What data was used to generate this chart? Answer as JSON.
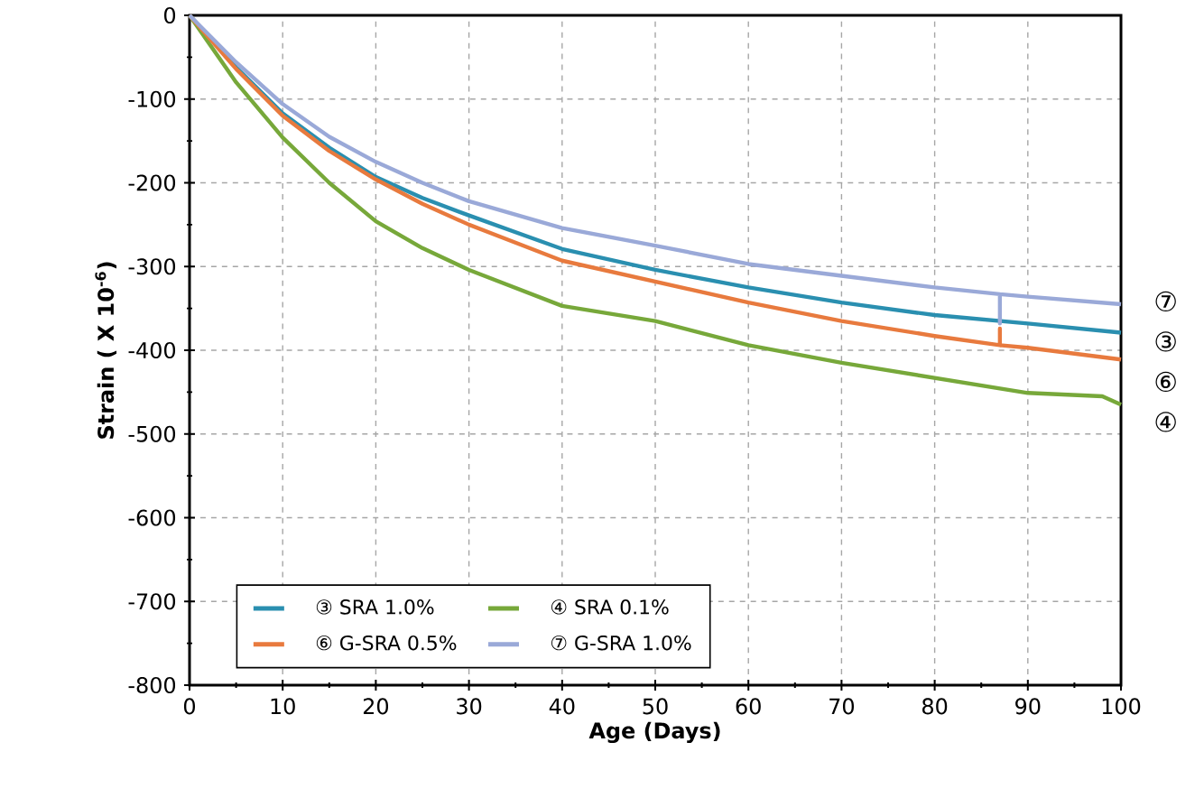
{
  "chart_data": {
    "type": "line",
    "xlabel": "Age (Days)",
    "ylabel": "Strain ( X 10$^{-6}$)",
    "xlim": [
      0,
      100
    ],
    "ylim": [
      -800,
      0
    ],
    "xticks": [
      0,
      10,
      20,
      30,
      40,
      50,
      60,
      70,
      80,
      90,
      100
    ],
    "yticks": [
      -800,
      -700,
      -600,
      -500,
      -400,
      -300,
      -200,
      -100,
      0
    ],
    "grid": true,
    "legend": "bottom left",
    "series": [
      {
        "name": "③ SRA 1.0%",
        "color": "#2a8fb0",
        "x": [
          0,
          5,
          10,
          15,
          20,
          25,
          30,
          40,
          50,
          60,
          70,
          80,
          90,
          100
        ],
        "values": [
          0,
          -62,
          -117,
          -158,
          -193,
          -218,
          -239,
          -279,
          -304,
          -325,
          -343,
          -358,
          -368,
          -379
        ]
      },
      {
        "name": "④ SRA 0.1%",
        "color": "#77a83a",
        "x": [
          0,
          5,
          10,
          15,
          20,
          25,
          30,
          40,
          50,
          60,
          70,
          80,
          90,
          98,
          100
        ],
        "values": [
          0,
          -80,
          -146,
          -200,
          -246,
          -278,
          -304,
          -347,
          -365,
          -394,
          -415,
          -433,
          -451,
          -455,
          -465
        ]
      },
      {
        "name": "⑥ G-SRA 0.5%",
        "color": "#e87a3e",
        "x": [
          0,
          5,
          10,
          15,
          20,
          25,
          30,
          40,
          50,
          60,
          70,
          80,
          87,
          87,
          87,
          90,
          100
        ],
        "values": [
          0,
          -64,
          -120,
          -162,
          -196,
          -225,
          -250,
          -293,
          -318,
          -343,
          -365,
          -383,
          -394,
          -374,
          -394,
          -397,
          -411
        ]
      },
      {
        "name": "⑦ G-SRA 1.0%",
        "color": "#9aa9d8",
        "x": [
          0,
          5,
          10,
          15,
          20,
          25,
          30,
          40,
          50,
          60,
          70,
          80,
          87,
          87,
          87,
          90,
          100
        ],
        "values": [
          0,
          -56,
          -106,
          -145,
          -175,
          -200,
          -222,
          -254,
          -275,
          -297,
          -311,
          -325,
          -333,
          -368,
          -333,
          -336,
          -345
        ]
      }
    ],
    "annotations": [
      "⑦",
      "③",
      "⑥",
      "④"
    ]
  }
}
